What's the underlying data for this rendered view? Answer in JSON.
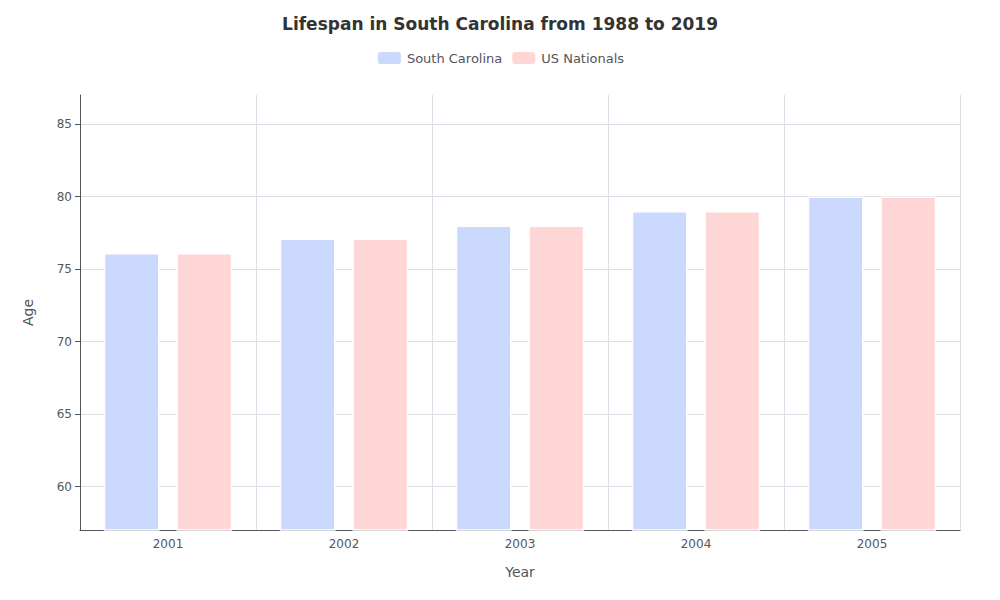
{
  "chart_data": {
    "type": "bar",
    "title": "Lifespan in South Carolina from 1988 to 2019",
    "x_label": "Year",
    "y_label": "Age",
    "categories": [
      "2001",
      "2002",
      "2003",
      "2004",
      "2005"
    ],
    "series": [
      {
        "name": "South Carolina",
        "color": "#ccd9ff",
        "values": [
          76.1,
          77.1,
          78.0,
          79.0,
          80.0
        ]
      },
      {
        "name": "US Nationals",
        "color": "#ffd6d6",
        "values": [
          76.1,
          77.1,
          78.0,
          79.0,
          80.0
        ]
      }
    ],
    "ylim": [
      57,
      87
    ],
    "yticks": [
      60,
      65,
      70,
      75,
      80,
      85
    ],
    "grid": true,
    "legend": "top"
  }
}
